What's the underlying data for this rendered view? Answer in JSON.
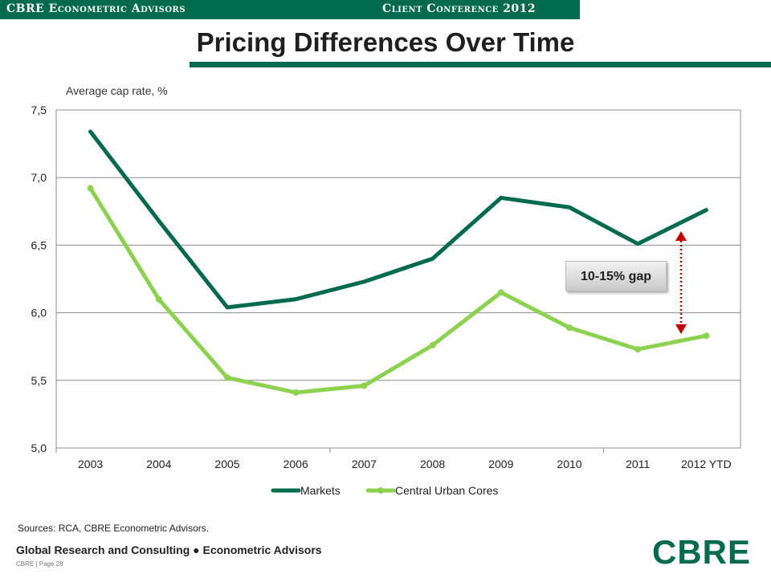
{
  "header": {
    "left_text": "CBRE Econometric Advisors",
    "right_text": "Client Conference 2012"
  },
  "page_title": "Pricing Differences Over Time",
  "chart_data": {
    "type": "line",
    "ylabel": "Average cap rate, %",
    "ylim": [
      5.0,
      7.5
    ],
    "yticks": [
      "5,0",
      "5,5",
      "6,0",
      "6,5",
      "7,0",
      "7,5"
    ],
    "categories": [
      "2003",
      "2004",
      "2005",
      "2006",
      "2007",
      "2008",
      "2009",
      "2010",
      "2011",
      "2012 YTD"
    ],
    "series": [
      {
        "name": "Markets",
        "color": "#006A4D",
        "values": [
          7.34,
          6.68,
          6.04,
          6.1,
          6.23,
          6.4,
          6.85,
          6.78,
          6.51,
          6.76
        ]
      },
      {
        "name": "Central Urban Cores",
        "color": "#8DD150",
        "values": [
          6.92,
          6.1,
          5.52,
          5.41,
          5.46,
          5.76,
          6.15,
          5.89,
          5.73,
          5.83
        ]
      }
    ],
    "grid": true,
    "legend": "bottom",
    "annotation": "10-15% gap"
  },
  "source_note": "Sources: RCA, CBRE Econometric Advisors.",
  "footer": {
    "line1": "Global Research and Consulting ● Econometric Advisors",
    "line2": "CBRE | Page 28"
  },
  "logo_text": "CBRE"
}
